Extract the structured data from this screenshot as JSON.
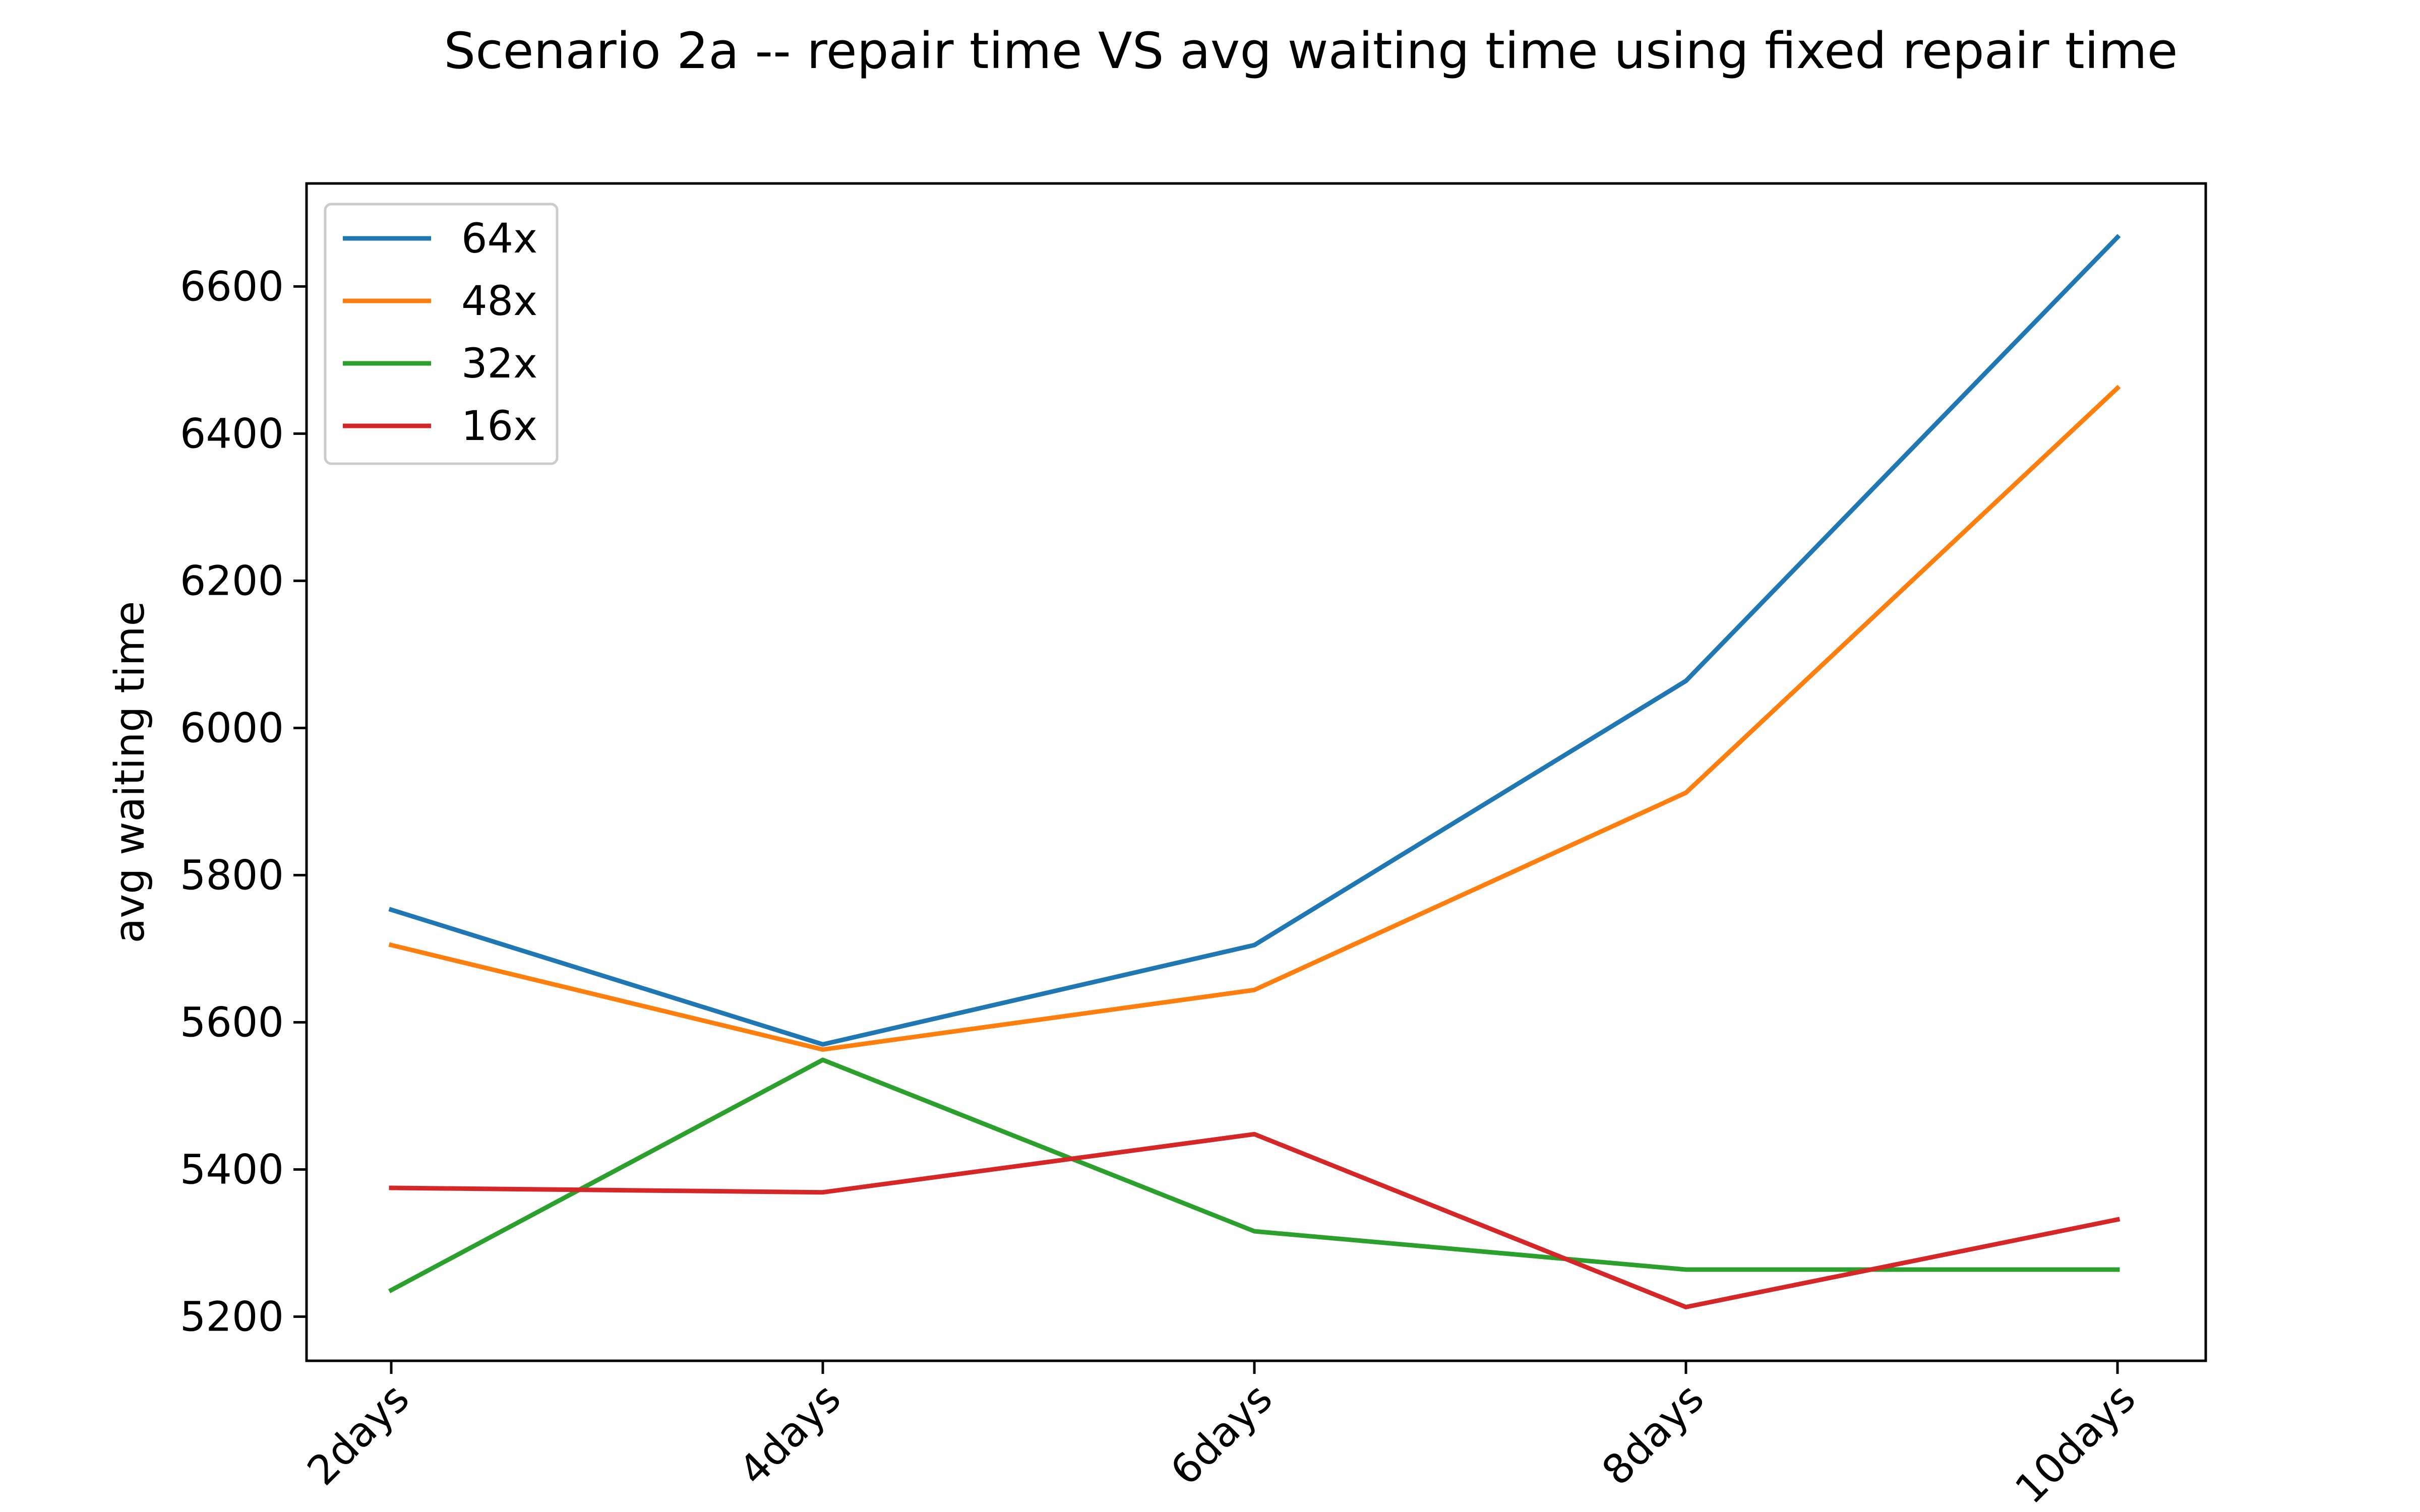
{
  "chart_data": {
    "type": "line",
    "title": "Scenario 2a -- repair time VS avg waiting time using fixed repair time",
    "xlabel": "",
    "ylabel": "avg waiting time",
    "categories": [
      "2days",
      "4days",
      "6days",
      "8days",
      "10days"
    ],
    "ylim": [
      5140,
      6740
    ],
    "yticks": [
      5200,
      5400,
      5600,
      5800,
      6000,
      6200,
      6400,
      6600
    ],
    "grid": false,
    "legend_position": "top-left",
    "series": [
      {
        "name": "64x",
        "color": "#1f77b4",
        "values": [
          5753,
          5570,
          5705,
          6064,
          6667
        ]
      },
      {
        "name": "48x",
        "color": "#ff7f0e",
        "values": [
          5705,
          5563,
          5644,
          5912,
          6462
        ]
      },
      {
        "name": "32x",
        "color": "#2ca02c",
        "values": [
          5236,
          5549,
          5316,
          5264,
          5264
        ]
      },
      {
        "name": "16x",
        "color": "#d62728",
        "values": [
          5375,
          5369,
          5448,
          5213,
          5332
        ]
      }
    ]
  }
}
